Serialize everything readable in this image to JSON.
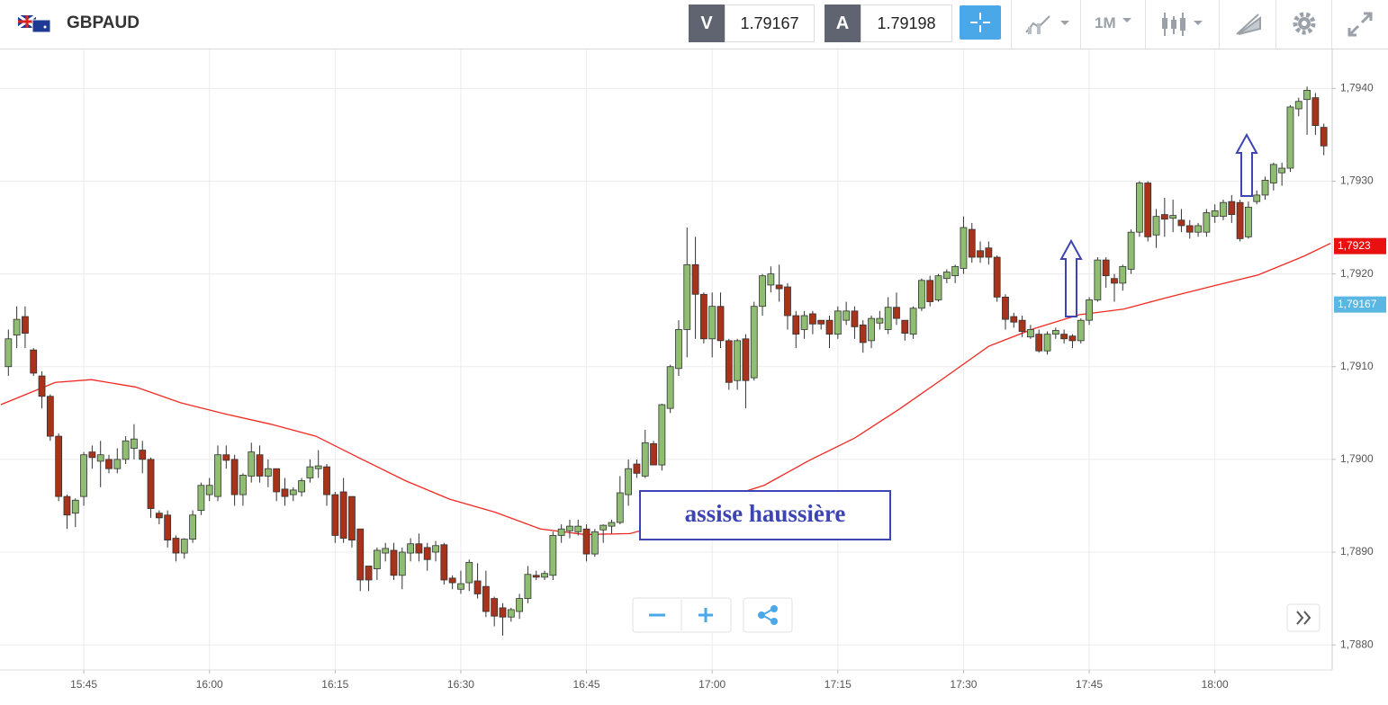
{
  "header": {
    "symbol": "GBPAUD",
    "bid_label": "V",
    "bid": "1.79167",
    "ask_label": "A",
    "ask": "1.79198",
    "timeframe": "1M"
  },
  "chart_data": {
    "type": "candlestick",
    "annotation": "assise haussière",
    "grid": true,
    "color_up": "#8fbd72",
    "color_down": "#a8321a",
    "xlim": [
      -1,
      158
    ],
    "xticks": [
      {
        "value": 9,
        "label": "15:45"
      },
      {
        "value": 24,
        "label": "16:00"
      },
      {
        "value": 39,
        "label": "16:15"
      },
      {
        "value": 54,
        "label": "16:30"
      },
      {
        "value": 69,
        "label": "16:45"
      },
      {
        "value": 84,
        "label": "17:00"
      },
      {
        "value": 99,
        "label": "17:15"
      },
      {
        "value": 114,
        "label": "17:30"
      },
      {
        "value": 129,
        "label": "17:45"
      },
      {
        "value": 144,
        "label": "18:00"
      }
    ],
    "ylim": [
      1.78773,
      1.79442
    ],
    "yticks": [
      {
        "value": 1.788,
        "label": "1,7880"
      },
      {
        "value": 1.789,
        "label": "1,7890"
      },
      {
        "value": 1.79,
        "label": "1,7900"
      },
      {
        "value": 1.791,
        "label": "1,7910"
      },
      {
        "value": 1.792,
        "label": "1,7920"
      },
      {
        "value": 1.793,
        "label": "1,7930"
      },
      {
        "value": 1.794,
        "label": "1,7940"
      }
    ],
    "price_tags": [
      {
        "value": 1.7923,
        "label": "1,7923",
        "color": "#e8110f"
      },
      {
        "value": 1.79167,
        "label": "1,79167",
        "color": "#5ab6e2"
      }
    ],
    "open": [
      1.791,
      1.79134,
      1.79154,
      1.79118,
      1.7909,
      1.79068,
      1.79025,
      1.7896,
      1.78942,
      1.7896,
      1.79008,
      1.78998,
      1.79,
      1.7899,
      1.79,
      1.79012,
      1.7901,
      1.79,
      1.78942,
      1.7894,
      1.78915,
      1.78899,
      1.78914,
      1.78945,
      1.78962,
      1.7896,
      1.79005,
      1.79,
      1.78962,
      1.78982,
      1.79005,
      1.78982,
      1.7899,
      1.78968,
      1.78962,
      1.78965,
      1.7898,
      1.7899,
      1.78992,
      1.78962,
      1.78965,
      1.7896,
      1.78925,
      1.78885,
      1.78882,
      1.78899,
      1.78902,
      1.78875,
      1.78899,
      1.78909,
      1.78905,
      1.789,
      1.78908,
      1.78872,
      1.7886,
      1.78867,
      1.78869,
      1.78863,
      1.7885,
      1.7884,
      1.7883,
      1.78836,
      1.7885,
      1.78875,
      1.78873,
      1.78875,
      1.78918,
      1.78923,
      1.78922,
      1.78925,
      1.78898,
      1.78924,
      1.78928,
      1.78932,
      1.78962,
      1.78995,
      1.78982,
      1.79017,
      1.78994,
      1.79055,
      1.79098,
      1.7914,
      1.7921,
      1.79178,
      1.7913,
      1.79165,
      1.79128,
      1.79085,
      1.7913,
      1.79088,
      1.79165,
      1.79188,
      1.79188,
      1.79186,
      1.79155,
      1.7914,
      1.79157,
      1.7915,
      1.7915,
      1.79135,
      1.7915,
      1.7916,
      1.79145,
      1.79128,
      1.79147,
      1.7914,
      1.79164,
      1.7915,
      1.79135,
      1.79163,
      1.79193,
      1.79172,
      1.79195,
      1.79198,
      1.79206,
      1.79248,
      1.79225,
      1.79228,
      1.79218,
      1.79175,
      1.79154,
      1.7915,
      1.79132,
      1.79135,
      1.79117,
      1.79135,
      1.79135,
      1.79133,
      1.79128,
      1.7915,
      1.79172,
      1.79215,
      1.79195,
      1.7919,
      1.79205,
      1.79245,
      1.79298,
      1.79242,
      1.79264,
      1.7926,
      1.79258,
      1.79252,
      1.79245,
      1.79245,
      1.79262,
      1.79262,
      1.79278,
      1.79277,
      1.7924,
      1.79278,
      1.79285,
      1.79298,
      1.79309,
      1.79314,
      1.79378,
      1.79388,
      1.7939,
      1.79358
    ],
    "high": [
      1.7914,
      1.79165,
      1.79165,
      1.7912,
      1.79095,
      1.7907,
      1.79028,
      1.78962,
      1.78958,
      1.79008,
      1.79015,
      1.7902,
      1.79005,
      1.79012,
      1.79025,
      1.79038,
      1.7902,
      1.79002,
      1.78945,
      1.78945,
      1.78918,
      1.78915,
      1.78945,
      1.78975,
      1.7898,
      1.79015,
      1.79015,
      1.79005,
      1.78985,
      1.79018,
      1.79015,
      1.79,
      1.7899,
      1.7898,
      1.7897,
      1.7898,
      1.79,
      1.7901,
      1.78995,
      1.78965,
      1.7898,
      1.7896,
      1.78925,
      1.78885,
      1.78905,
      1.7891,
      1.7891,
      1.78905,
      1.78915,
      1.7892,
      1.7891,
      1.78912,
      1.7891,
      1.78875,
      1.7888,
      1.78892,
      1.78888,
      1.7888,
      1.78852,
      1.78845,
      1.7884,
      1.78855,
      1.78885,
      1.7888,
      1.7888,
      1.78922,
      1.7893,
      1.78935,
      1.78935,
      1.7893,
      1.78925,
      1.7893,
      1.78935,
      1.78982,
      1.79,
      1.79,
      1.79032,
      1.7902,
      1.7906,
      1.79102,
      1.7915,
      1.7925,
      1.7924,
      1.7918,
      1.7918,
      1.7918,
      1.7913,
      1.7913,
      1.79135,
      1.7917,
      1.792,
      1.79208,
      1.7921,
      1.7919,
      1.7916,
      1.7916,
      1.7916,
      1.7915,
      1.79155,
      1.79165,
      1.7917,
      1.79165,
      1.7915,
      1.79155,
      1.7916,
      1.79175,
      1.7918,
      1.7915,
      1.79165,
      1.79195,
      1.79198,
      1.792,
      1.79205,
      1.7921,
      1.79262,
      1.79255,
      1.79235,
      1.79235,
      1.7922,
      1.79178,
      1.79158,
      1.79155,
      1.79145,
      1.7914,
      1.79138,
      1.79142,
      1.7914,
      1.79135,
      1.79152,
      1.79175,
      1.79218,
      1.79218,
      1.792,
      1.7921,
      1.79248,
      1.793,
      1.793,
      1.7927,
      1.79282,
      1.7928,
      1.7927,
      1.79258,
      1.79255,
      1.7927,
      1.79275,
      1.7928,
      1.79285,
      1.7928,
      1.79278,
      1.7929,
      1.79305,
      1.7932,
      1.7932,
      1.79382,
      1.7939,
      1.79402,
      1.79395,
      1.79362
    ],
    "low": [
      1.7909,
      1.7912,
      1.7912,
      1.7909,
      1.79055,
      1.7902,
      1.78955,
      1.78925,
      1.78927,
      1.7895,
      1.7899,
      1.7897,
      1.78985,
      1.78985,
      1.78995,
      1.79,
      1.78985,
      1.78937,
      1.7893,
      1.78905,
      1.7889,
      1.78893,
      1.7891,
      1.7894,
      1.78955,
      1.78955,
      1.7899,
      1.7895,
      1.7895,
      1.78975,
      1.78975,
      1.7897,
      1.78955,
      1.7895,
      1.78955,
      1.7896,
      1.78975,
      1.7898,
      1.7895,
      1.7891,
      1.7891,
      1.78905,
      1.78858,
      1.78858,
      1.7887,
      1.7889,
      1.7887,
      1.7886,
      1.7889,
      1.7889,
      1.7888,
      1.7889,
      1.78865,
      1.7886,
      1.78855,
      1.78858,
      1.7885,
      1.7883,
      1.7882,
      1.7881,
      1.78825,
      1.78828,
      1.78845,
      1.7887,
      1.7887,
      1.7887,
      1.7891,
      1.78915,
      1.78918,
      1.7889,
      1.78895,
      1.7891,
      1.7892,
      1.7893,
      1.7895,
      1.7898,
      1.7898,
      1.79,
      1.78988,
      1.7905,
      1.7909,
      1.7911,
      1.7913,
      1.79125,
      1.7911,
      1.7912,
      1.79075,
      1.79075,
      1.79055,
      1.79085,
      1.79155,
      1.7918,
      1.7917,
      1.7914,
      1.7912,
      1.7913,
      1.79135,
      1.7914,
      1.7912,
      1.7913,
      1.79145,
      1.7913,
      1.79115,
      1.7912,
      1.7914,
      1.79135,
      1.79145,
      1.79128,
      1.7913,
      1.7916,
      1.79165,
      1.7917,
      1.7919,
      1.7919,
      1.792,
      1.79212,
      1.79212,
      1.7921,
      1.7917,
      1.7914,
      1.79142,
      1.79132,
      1.7913,
      1.79115,
      1.79113,
      1.7913,
      1.79125,
      1.7912,
      1.79125,
      1.79145,
      1.7917,
      1.79185,
      1.7917,
      1.79182,
      1.792,
      1.7924,
      1.79235,
      1.79228,
      1.7924,
      1.79245,
      1.79245,
      1.79238,
      1.7924,
      1.7924,
      1.79255,
      1.79258,
      1.79255,
      1.79235,
      1.79238,
      1.79275,
      1.7928,
      1.7929,
      1.79295,
      1.7931,
      1.7937,
      1.7935,
      1.7935,
      1.79328
    ],
    "close": [
      1.7913,
      1.79151,
      1.79136,
      1.79093,
      1.79068,
      1.79025,
      1.7896,
      1.7894,
      1.78956,
      1.79005,
      1.79002,
      1.79005,
      1.7899,
      1.79,
      1.7902,
      1.79022,
      1.79,
      1.78947,
      1.78937,
      1.78913,
      1.78899,
      1.78914,
      1.7894,
      1.78972,
      1.78972,
      1.79005,
      1.78999,
      1.78962,
      1.78983,
      1.79008,
      1.78982,
      1.7899,
      1.78965,
      1.7896,
      1.78967,
      1.78977,
      1.78992,
      1.78993,
      1.78962,
      1.78918,
      1.78915,
      1.78913,
      1.7887,
      1.7887,
      1.78902,
      1.78904,
      1.78875,
      1.789,
      1.78909,
      1.78899,
      1.78892,
      1.78907,
      1.7887,
      1.78867,
      1.78866,
      1.78889,
      1.78855,
      1.78836,
      1.78831,
      1.7883,
      1.78838,
      1.7885,
      1.78876,
      1.78873,
      1.78877,
      1.78918,
      1.78925,
      1.78928,
      1.78928,
      1.78898,
      1.78922,
      1.78929,
      1.78932,
      1.78964,
      1.7899,
      1.78985,
      1.79018,
      1.78994,
      1.79059,
      1.791,
      1.7914,
      1.7921,
      1.79178,
      1.7913,
      1.79165,
      1.79128,
      1.79083,
      1.79128,
      1.79085,
      1.79165,
      1.79198,
      1.792,
      1.79184,
      1.79155,
      1.79135,
      1.79155,
      1.79146,
      1.79146,
      1.79135,
      1.7916,
      1.7916,
      1.79143,
      1.79126,
      1.79152,
      1.79152,
      1.79164,
      1.79152,
      1.79136,
      1.79163,
      1.79193,
      1.7917,
      1.79198,
      1.79202,
      1.79208,
      1.7925,
      1.79218,
      1.79218,
      1.79218,
      1.79175,
      1.79151,
      1.79148,
      1.79138,
      1.7914,
      1.79117,
      1.79135,
      1.79139,
      1.7913,
      1.79128,
      1.7915,
      1.79172,
      1.79215,
      1.79198,
      1.7919,
      1.79208,
      1.79245,
      1.79298,
      1.7924,
      1.79262,
      1.79259,
      1.79263,
      1.79252,
      1.79245,
      1.79252,
      1.79266,
      1.79268,
      1.79277,
      1.79264,
      1.79238,
      1.79272,
      1.79285,
      1.79301,
      1.79318,
      1.79314,
      1.7938,
      1.79386,
      1.79398,
      1.7936,
      1.79338
    ],
    "moving_average": {
      "color": "#f02a22",
      "x": [
        -0.9,
        5.6,
        9.9,
        15.2,
        20.6,
        25.9,
        31.3,
        36.7,
        42,
        47.4,
        52.7,
        58.1,
        63.5,
        68.8,
        74.2,
        79.5,
        84.9,
        90.2,
        95.6,
        101,
        106.3,
        111.7,
        117,
        122.4,
        127.8,
        133.1,
        138.5,
        143.8,
        149.2,
        154.6,
        157.8
      ],
      "values": [
        1.79059,
        1.79083,
        1.79086,
        1.79078,
        1.79061,
        1.79049,
        1.79038,
        1.79025,
        1.79001,
        1.78977,
        1.78957,
        1.78943,
        1.78925,
        1.78919,
        1.7892,
        1.78933,
        1.78957,
        1.78972,
        1.78999,
        1.79023,
        1.79054,
        1.79088,
        1.79122,
        1.79141,
        1.79156,
        1.79162,
        1.79175,
        1.79187,
        1.79199,
        1.79219,
        1.79233
      ]
    }
  }
}
